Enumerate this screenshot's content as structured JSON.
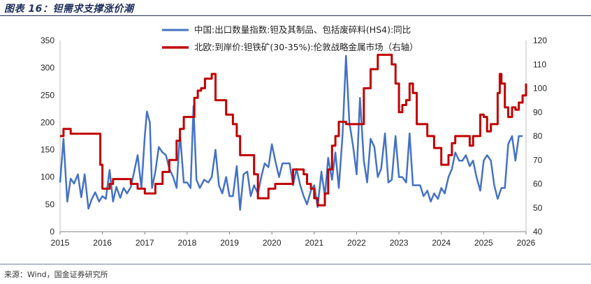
{
  "header": {
    "figure_title": "图表 16：钽需求支撑涨价潮"
  },
  "footer": {
    "source": "来源：Wind，国金证券研究所"
  },
  "chart_data": {
    "type": "line",
    "x_ticks": [
      "2015",
      "2016",
      "2017",
      "2018",
      "2019",
      "2020",
      "2021",
      "2022",
      "2023",
      "2024",
      "2025",
      "2026"
    ],
    "x_range": [
      2015,
      2026
    ],
    "y_left": {
      "range": [
        0,
        350
      ],
      "ticks": [
        0,
        50,
        100,
        150,
        200,
        250,
        300,
        350
      ]
    },
    "y_right": {
      "range": [
        40,
        120
      ],
      "ticks": [
        40,
        50,
        60,
        70,
        80,
        90,
        100,
        110,
        120
      ]
    },
    "legend_position": "top-center",
    "grid": false,
    "series": [
      {
        "name": "中国:出口数量指数:钽及其制品、包括废碎料(HS4):同比",
        "axis": "left",
        "color": "#4472C4",
        "points": [
          [
            2015.0,
            90
          ],
          [
            2015.08,
            170
          ],
          [
            2015.17,
            55
          ],
          [
            2015.25,
            97
          ],
          [
            2015.33,
            88
          ],
          [
            2015.42,
            105
          ],
          [
            2015.5,
            63
          ],
          [
            2015.58,
            105
          ],
          [
            2015.67,
            42
          ],
          [
            2015.75,
            60
          ],
          [
            2015.83,
            72
          ],
          [
            2015.92,
            55
          ],
          [
            2016.0,
            65
          ],
          [
            2016.08,
            60
          ],
          [
            2016.17,
            113
          ],
          [
            2016.25,
            55
          ],
          [
            2016.33,
            82
          ],
          [
            2016.42,
            62
          ],
          [
            2016.5,
            80
          ],
          [
            2016.58,
            70
          ],
          [
            2016.67,
            82
          ],
          [
            2016.75,
            110
          ],
          [
            2016.83,
            140
          ],
          [
            2016.92,
            80
          ],
          [
            2017.0,
            175
          ],
          [
            2017.05,
            220
          ],
          [
            2017.12,
            200
          ],
          [
            2017.17,
            80
          ],
          [
            2017.25,
            110
          ],
          [
            2017.33,
            155
          ],
          [
            2017.42,
            145
          ],
          [
            2017.5,
            140
          ],
          [
            2017.58,
            115
          ],
          [
            2017.67,
            100
          ],
          [
            2017.75,
            80
          ],
          [
            2017.83,
            180
          ],
          [
            2017.92,
            90
          ],
          [
            2018.0,
            90
          ],
          [
            2018.08,
            80
          ],
          [
            2018.15,
            230
          ],
          [
            2018.22,
            95
          ],
          [
            2018.3,
            80
          ],
          [
            2018.4,
            95
          ],
          [
            2018.5,
            90
          ],
          [
            2018.58,
            100
          ],
          [
            2018.67,
            150
          ],
          [
            2018.75,
            85
          ],
          [
            2018.83,
            70
          ],
          [
            2018.92,
            100
          ],
          [
            2019.0,
            65
          ],
          [
            2019.08,
            65
          ],
          [
            2019.17,
            120
          ],
          [
            2019.25,
            40
          ],
          [
            2019.33,
            105
          ],
          [
            2019.42,
            110
          ],
          [
            2019.5,
            65
          ],
          [
            2019.58,
            85
          ],
          [
            2019.67,
            70
          ],
          [
            2019.75,
            100
          ],
          [
            2019.83,
            125
          ],
          [
            2019.92,
            118
          ],
          [
            2020.0,
            160
          ],
          [
            2020.08,
            130
          ],
          [
            2020.17,
            100
          ],
          [
            2020.25,
            125
          ],
          [
            2020.33,
            125
          ],
          [
            2020.42,
            125
          ],
          [
            2020.5,
            85
          ],
          [
            2020.58,
            115
          ],
          [
            2020.67,
            85
          ],
          [
            2020.75,
            65
          ],
          [
            2020.83,
            50
          ],
          [
            2020.92,
            75
          ],
          [
            2021.0,
            85
          ],
          [
            2021.08,
            45
          ],
          [
            2021.17,
            110
          ],
          [
            2021.25,
            65
          ],
          [
            2021.33,
            135
          ],
          [
            2021.42,
            95
          ],
          [
            2021.5,
            145
          ],
          [
            2021.58,
            80
          ],
          [
            2021.67,
            178
          ],
          [
            2021.75,
            322
          ],
          [
            2021.83,
            200
          ],
          [
            2021.92,
            155
          ],
          [
            2022.0,
            105
          ],
          [
            2022.08,
            245
          ],
          [
            2022.17,
            130
          ],
          [
            2022.25,
            90
          ],
          [
            2022.33,
            170
          ],
          [
            2022.42,
            155
          ],
          [
            2022.5,
            100
          ],
          [
            2022.58,
            115
          ],
          [
            2022.67,
            180
          ],
          [
            2022.75,
            90
          ],
          [
            2022.83,
            95
          ],
          [
            2022.92,
            175
          ],
          [
            2023.0,
            100
          ],
          [
            2023.08,
            100
          ],
          [
            2023.17,
            90
          ],
          [
            2023.25,
            180
          ],
          [
            2023.33,
            85
          ],
          [
            2023.42,
            85
          ],
          [
            2023.5,
            85
          ],
          [
            2023.58,
            65
          ],
          [
            2023.67,
            75
          ],
          [
            2023.75,
            55
          ],
          [
            2023.83,
            70
          ],
          [
            2023.92,
            60
          ],
          [
            2024.0,
            80
          ],
          [
            2024.08,
            70
          ],
          [
            2024.17,
            100
          ],
          [
            2024.25,
            115
          ],
          [
            2024.33,
            145
          ],
          [
            2024.42,
            130
          ],
          [
            2024.5,
            130
          ],
          [
            2024.58,
            140
          ],
          [
            2024.67,
            120
          ],
          [
            2024.75,
            130
          ],
          [
            2024.83,
            100
          ],
          [
            2024.92,
            75
          ],
          [
            2025.0,
            130
          ],
          [
            2025.08,
            140
          ],
          [
            2025.17,
            130
          ],
          [
            2025.25,
            85
          ],
          [
            2025.33,
            60
          ],
          [
            2025.42,
            80
          ],
          [
            2025.5,
            80
          ],
          [
            2025.58,
            160
          ],
          [
            2025.67,
            175
          ],
          [
            2025.75,
            130
          ],
          [
            2025.83,
            175
          ],
          [
            2025.92,
            175
          ]
        ]
      },
      {
        "name": "北欧:到岸价:钽铁矿(30-35%):伦敦战略金属市场（右轴）",
        "axis": "right",
        "color": "#C00000",
        "points": [
          [
            2015.0,
            80
          ],
          [
            2015.08,
            83
          ],
          [
            2015.17,
            83
          ],
          [
            2015.25,
            81
          ],
          [
            2015.5,
            81
          ],
          [
            2015.75,
            81
          ],
          [
            2015.92,
            81
          ],
          [
            2015.95,
            68
          ],
          [
            2016.0,
            58
          ],
          [
            2016.08,
            58
          ],
          [
            2016.17,
            60
          ],
          [
            2016.25,
            62
          ],
          [
            2016.42,
            62
          ],
          [
            2016.58,
            62
          ],
          [
            2016.67,
            60
          ],
          [
            2016.75,
            60
          ],
          [
            2016.83,
            58
          ],
          [
            2016.92,
            58
          ],
          [
            2017.0,
            56
          ],
          [
            2017.17,
            56
          ],
          [
            2017.25,
            60
          ],
          [
            2017.42,
            65
          ],
          [
            2017.58,
            70
          ],
          [
            2017.75,
            78
          ],
          [
            2017.83,
            83
          ],
          [
            2017.92,
            88
          ],
          [
            2018.08,
            88
          ],
          [
            2018.17,
            96
          ],
          [
            2018.25,
            99
          ],
          [
            2018.33,
            100
          ],
          [
            2018.42,
            104
          ],
          [
            2018.5,
            104
          ],
          [
            2018.58,
            106
          ],
          [
            2018.67,
            95
          ],
          [
            2018.75,
            95
          ],
          [
            2018.83,
            95
          ],
          [
            2018.92,
            89
          ],
          [
            2019.0,
            89
          ],
          [
            2019.08,
            85
          ],
          [
            2019.17,
            80
          ],
          [
            2019.25,
            72
          ],
          [
            2019.42,
            72
          ],
          [
            2019.5,
            72
          ],
          [
            2019.58,
            64
          ],
          [
            2019.67,
            54
          ],
          [
            2019.83,
            54
          ],
          [
            2019.92,
            58
          ],
          [
            2020.0,
            58
          ],
          [
            2020.08,
            60
          ],
          [
            2020.42,
            60
          ],
          [
            2020.5,
            66
          ],
          [
            2020.58,
            66
          ],
          [
            2020.67,
            66
          ],
          [
            2020.75,
            64
          ],
          [
            2020.83,
            60
          ],
          [
            2020.92,
            58
          ],
          [
            2021.0,
            54
          ],
          [
            2021.08,
            51
          ],
          [
            2021.17,
            51
          ],
          [
            2021.25,
            56
          ],
          [
            2021.33,
            66
          ],
          [
            2021.42,
            76
          ],
          [
            2021.5,
            80
          ],
          [
            2021.58,
            86
          ],
          [
            2021.67,
            86
          ],
          [
            2021.75,
            85
          ],
          [
            2021.83,
            85
          ],
          [
            2022.0,
            85
          ],
          [
            2022.08,
            85
          ],
          [
            2022.17,
            100
          ],
          [
            2022.25,
            100
          ],
          [
            2022.33,
            108
          ],
          [
            2022.42,
            108
          ],
          [
            2022.5,
            114
          ],
          [
            2022.58,
            114
          ],
          [
            2022.75,
            114
          ],
          [
            2022.83,
            110
          ],
          [
            2022.92,
            102
          ],
          [
            2023.0,
            90
          ],
          [
            2023.08,
            93
          ],
          [
            2023.17,
            95
          ],
          [
            2023.25,
            102
          ],
          [
            2023.33,
            98
          ],
          [
            2023.42,
            85
          ],
          [
            2023.5,
            85
          ],
          [
            2023.58,
            85
          ],
          [
            2023.67,
            80
          ],
          [
            2023.75,
            80
          ],
          [
            2023.83,
            75
          ],
          [
            2023.92,
            75
          ],
          [
            2024.0,
            68
          ],
          [
            2024.08,
            68
          ],
          [
            2024.17,
            72
          ],
          [
            2024.25,
            77
          ],
          [
            2024.33,
            80
          ],
          [
            2024.42,
            80
          ],
          [
            2024.5,
            80
          ],
          [
            2024.58,
            80
          ],
          [
            2024.67,
            76
          ],
          [
            2024.75,
            80
          ],
          [
            2024.83,
            80
          ],
          [
            2024.92,
            89
          ],
          [
            2025.0,
            88
          ],
          [
            2025.08,
            82
          ],
          [
            2025.17,
            85
          ],
          [
            2025.25,
            85
          ],
          [
            2025.33,
            98
          ],
          [
            2025.38,
            106
          ],
          [
            2025.42,
            102
          ],
          [
            2025.5,
            92
          ],
          [
            2025.58,
            88
          ],
          [
            2025.67,
            92
          ],
          [
            2025.75,
            91
          ],
          [
            2025.83,
            94
          ],
          [
            2025.92,
            97
          ],
          [
            2026.0,
            102
          ]
        ]
      }
    ]
  }
}
